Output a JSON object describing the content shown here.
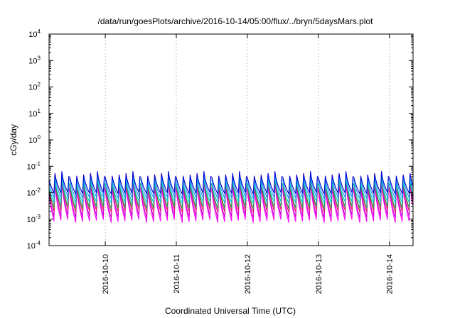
{
  "chart_data": {
    "type": "line",
    "title": "/data/run/goesPlots/archive/2016-10-14/05:00/flux/../bryn/5daysMars.plot",
    "xlabel": "Coordinated Universal Time (UTC)",
    "ylabel": "cGy/day",
    "yscale": "log",
    "ylim": [
      0.0001,
      10000
    ],
    "xlim": [
      "2016-10-09T05:00",
      "2016-10-14T08:00"
    ],
    "grid": true,
    "legend": "none",
    "x_ticks": [
      "2016-10-10",
      "2016-10-11",
      "2016-10-12",
      "2016-10-13",
      "2016-10-14"
    ],
    "y_ticks": [
      {
        "base": "10",
        "exp": "4",
        "value": 10000
      },
      {
        "base": "10",
        "exp": "3",
        "value": 1000
      },
      {
        "base": "10",
        "exp": "2",
        "value": 100
      },
      {
        "base": "10",
        "exp": "1",
        "value": 10
      },
      {
        "base": "10",
        "exp": "0",
        "value": 1
      },
      {
        "base": "10",
        "exp": "-1",
        "value": 0.1
      },
      {
        "base": "10",
        "exp": "-2",
        "value": 0.01
      },
      {
        "base": "10",
        "exp": "-3",
        "value": 0.001
      },
      {
        "base": "10",
        "exp": "-4",
        "value": 0.0001
      }
    ],
    "pattern": {
      "period_hours": 2.4,
      "phase_shift_hours": 1.8,
      "shape": "sawtooth: sharp rise then decay"
    },
    "series": [
      {
        "color": "#ff00ff",
        "peak": 0.045,
        "trough": 0.00075
      },
      {
        "color": "#cc00cc",
        "peak": 0.05,
        "trough": 0.0011
      },
      {
        "color": "#e81e63",
        "peak": 0.06,
        "trough": 0.0018
      },
      {
        "color": "#20a050",
        "peak": 0.055,
        "trough": 0.0025
      },
      {
        "color": "#00c8c8",
        "peak": 0.05,
        "trough": 0.004
      },
      {
        "color": "#1e90ff",
        "peak": 0.07,
        "trough": 0.006
      },
      {
        "color": "#0000cc",
        "peak": 0.08,
        "trough": 0.009
      }
    ]
  }
}
